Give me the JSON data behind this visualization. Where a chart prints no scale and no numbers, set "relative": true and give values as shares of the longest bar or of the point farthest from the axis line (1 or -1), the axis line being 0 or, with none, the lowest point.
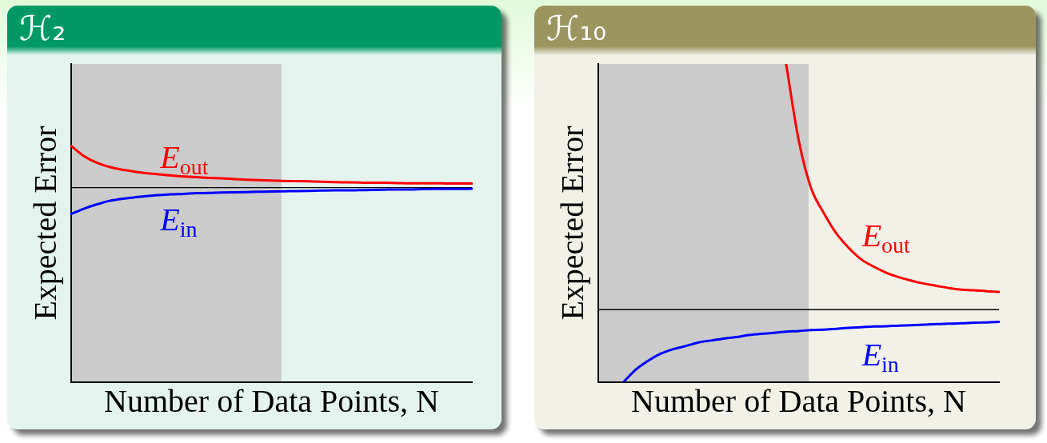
{
  "chart_data": [
    {
      "type": "line",
      "title": "ℋ₂",
      "xlabel": "Number of Data Points, N",
      "ylabel": "Expected Error",
      "relative": true,
      "tick_labels": false,
      "categories": [
        null,
        null,
        null,
        null,
        null,
        null,
        null,
        null,
        null,
        null,
        null,
        null,
        null,
        null,
        null,
        null,
        null,
        null,
        null,
        null,
        null,
        null,
        null,
        null,
        null,
        null,
        null,
        null,
        null,
        null,
        null,
        null,
        null
      ],
      "series": [
        {
          "name": "E$_{out}$",
          "color": "#ff0000",
          "values": [
            1,
            0.958,
            0.93,
            0.912,
            0.9,
            0.892,
            0.885,
            0.88,
            0.875,
            0.871,
            0.868,
            0.865,
            0.863,
            0.86,
            0.857,
            0.855,
            0.854,
            0.852,
            0.851,
            0.85,
            0.849,
            0.847,
            0.846,
            0.845,
            0.844,
            0.844,
            0.843,
            0.842,
            0.842,
            0.842,
            0.841,
            0.841,
            0.841
          ]
        },
        {
          "name": "E$_{in}$",
          "color": "#0000ff",
          "values": [
            0.712,
            0.734,
            0.752,
            0.767,
            0.776,
            0.782,
            0.788,
            0.792,
            0.795,
            0.797,
            0.8,
            0.801,
            0.803,
            0.804,
            0.805,
            0.806,
            0.807,
            0.808,
            0.809,
            0.81,
            0.811,
            0.812,
            0.812,
            0.813,
            0.814,
            0.815,
            0.816,
            0.816,
            0.817,
            0.818,
            0.818,
            0.818,
            0.819
          ]
        }
      ],
      "ref_lines": [
        {
          "axis": "y",
          "value": 0.824,
          "color": "#000000"
        }
      ]
    },
    {
      "type": "line",
      "title": "ℋ₁₀",
      "xlabel": "Number of Data Points, N",
      "ylabel": "Expected Error",
      "relative": true,
      "tick_labels": false,
      "categories": [
        null,
        null,
        null,
        null,
        null,
        null,
        null,
        null,
        null,
        null,
        null,
        null,
        null,
        null,
        null,
        null,
        null,
        null,
        null,
        null,
        null,
        null,
        null,
        null,
        null,
        null,
        null,
        null,
        null,
        null,
        null,
        null,
        null
      ],
      "series": [
        {
          "name": "E$_{out}$",
          "color": "#ff0000",
          "values": [
            null,
            null,
            null,
            null,
            null,
            null,
            null,
            null,
            null,
            null,
            null,
            null,
            null,
            null,
            null,
            1,
            0.761,
            0.609,
            0.532,
            0.468,
            0.422,
            0.386,
            0.363,
            0.344,
            0.33,
            0.319,
            0.31,
            0.303,
            0.296,
            0.291,
            0.289,
            0.286,
            0.284
          ]
        },
        {
          "name": "E$_{in}$",
          "color": "#0000ff",
          "values": [
            null,
            null,
            0,
            0.04,
            0.068,
            0.09,
            0.104,
            0.114,
            0.125,
            0.131,
            0.137,
            0.142,
            0.148,
            0.152,
            0.155,
            0.159,
            0.161,
            0.164,
            0.165,
            0.168,
            0.171,
            0.173,
            0.175,
            0.176,
            0.178,
            0.179,
            0.181,
            0.183,
            0.184,
            0.185,
            0.187,
            0.188,
            0.19
          ]
        }
      ],
      "ref_lines": [
        {
          "axis": "y",
          "value": 0.228,
          "color": "#000000"
        }
      ]
    }
  ]
}
